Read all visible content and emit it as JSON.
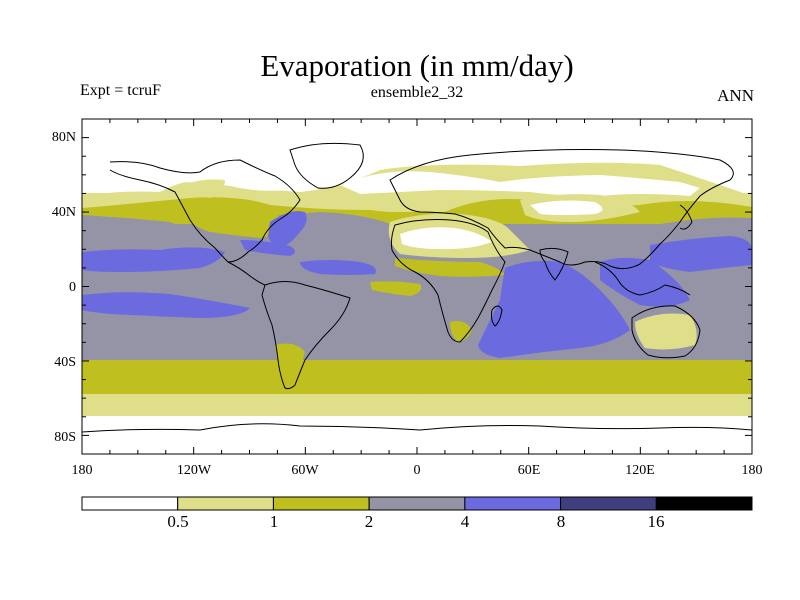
{
  "header": {
    "title": "Evaporation (in mm/day)",
    "experiment": "Expt = tcruF",
    "ensemble": "ensemble2_32",
    "period": "ANN"
  },
  "map": {
    "lat_labels": [
      "80N",
      "40N",
      "0",
      "40S",
      "80S"
    ],
    "lon_labels": [
      "180",
      "120W",
      "60W",
      "0",
      "60E",
      "120E",
      "180"
    ]
  },
  "colorbar": {
    "labels": [
      "0.5",
      "1",
      "2",
      "4",
      "8",
      "16"
    ],
    "colors": [
      "#ffffff",
      "#dfdf8a",
      "#bfbf1f",
      "#9494a6",
      "#6b6bdf",
      "#3f3f7f",
      "#000000"
    ]
  },
  "colors": {
    "white": "#ffffff",
    "khaki": "#dfdf8a",
    "olive": "#bfbf1f",
    "gray": "#9494a6",
    "blue": "#6b6bdf"
  }
}
